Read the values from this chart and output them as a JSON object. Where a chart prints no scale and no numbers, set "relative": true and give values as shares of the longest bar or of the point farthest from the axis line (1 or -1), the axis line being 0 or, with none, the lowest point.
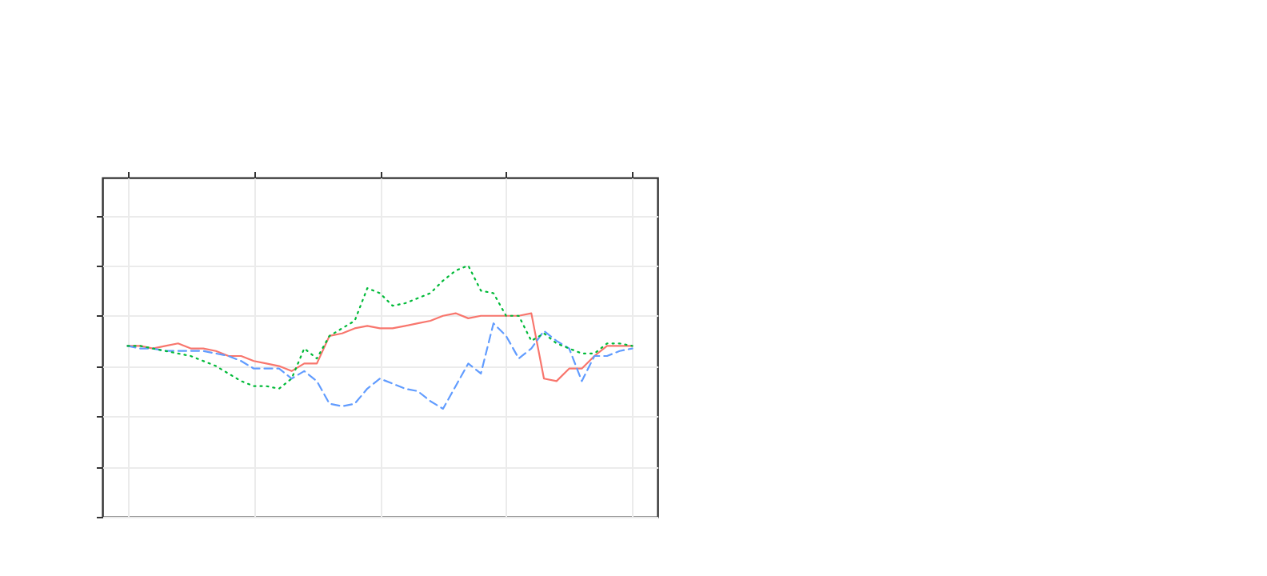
{
  "chart_data": {
    "type": "line",
    "relative": true,
    "grid": true,
    "legend": false,
    "categories": [
      null,
      null,
      null,
      null,
      null,
      null,
      null,
      null,
      null,
      null,
      null,
      null,
      null,
      null,
      null,
      null,
      null,
      null,
      null,
      null,
      null,
      null,
      null,
      null,
      null,
      null,
      null,
      null,
      null,
      null,
      null,
      null,
      null,
      null,
      null,
      null,
      null,
      null,
      null,
      null,
      null
    ],
    "series": [
      {
        "color": "#f8766d",
        "line_style": "solid",
        "values": [
          0.68,
          0.68,
          0.67,
          0.68,
          0.69,
          0.67,
          0.67,
          0.66,
          0.64,
          0.64,
          0.62,
          0.61,
          0.6,
          0.58,
          0.61,
          0.61,
          0.72,
          0.73,
          0.75,
          0.76,
          0.75,
          0.75,
          0.76,
          0.77,
          0.78,
          0.8,
          0.81,
          0.79,
          0.8,
          0.8,
          0.8,
          0.8,
          0.81,
          0.55,
          0.54,
          0.59,
          0.59,
          0.64,
          0.68,
          0.68,
          0.68
        ]
      },
      {
        "color": "#00ba38",
        "line_style": "dotted",
        "values": [
          0.68,
          0.68,
          0.67,
          0.66,
          0.65,
          0.64,
          0.62,
          0.6,
          0.57,
          0.54,
          0.52,
          0.52,
          0.51,
          0.55,
          0.67,
          0.63,
          0.72,
          0.75,
          0.78,
          0.91,
          0.89,
          0.84,
          0.85,
          0.87,
          0.89,
          0.94,
          0.98,
          1,
          0.9,
          0.89,
          0.8,
          0.8,
          0.7,
          0.73,
          0.69,
          0.67,
          0.65,
          0.65,
          0.69,
          0.69,
          0.68
        ]
      },
      {
        "color": "#619cff",
        "line_style": "dashed",
        "values": [
          0.68,
          0.67,
          0.67,
          0.66,
          0.66,
          0.66,
          0.66,
          0.65,
          0.64,
          0.62,
          0.59,
          0.59,
          0.59,
          0.55,
          0.58,
          0.54,
          0.45,
          0.44,
          0.45,
          0.51,
          0.55,
          0.53,
          0.51,
          0.5,
          0.46,
          0.43,
          0.52,
          0.61,
          0.57,
          0.77,
          0.72,
          0.63,
          0.67,
          0.74,
          0.7,
          0.67,
          0.54,
          0.64,
          0.64,
          0.66,
          0.67
        ]
      }
    ]
  }
}
